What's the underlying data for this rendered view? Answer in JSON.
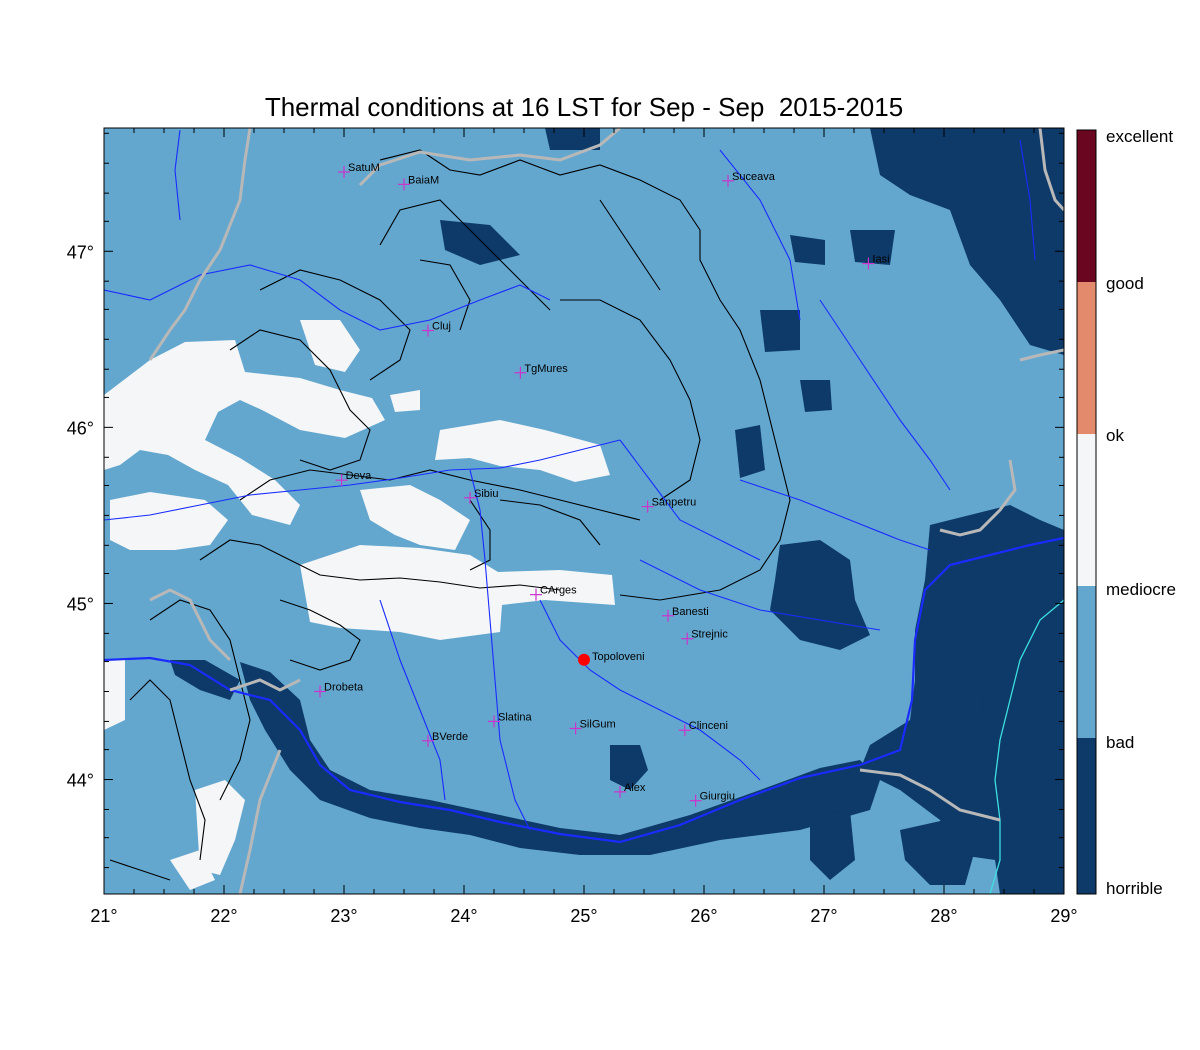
{
  "title": "Thermal conditions at 16 LST for Sep - Sep  2015-2015",
  "colors": {
    "horrible": "#0d3a68",
    "bad": "#63a7cf",
    "mediocre": "#f4f6f8",
    "ok": "#e48a6c",
    "good": "#6b0620",
    "excellent": "#6b0620",
    "border": "#b8b8b8",
    "river": "#1a2bff",
    "coast": "#3de0e0",
    "city": "#cc33cc",
    "highlight": "#ff0000"
  },
  "map": {
    "lon_range": [
      21,
      29
    ],
    "lat_range": [
      43.35,
      47.7
    ],
    "lon_ticks": [
      {
        "value": 21,
        "label": "21°"
      },
      {
        "value": 22,
        "label": "22°"
      },
      {
        "value": 23,
        "label": "23°"
      },
      {
        "value": 24,
        "label": "24°"
      },
      {
        "value": 25,
        "label": "25°"
      },
      {
        "value": 26,
        "label": "26°"
      },
      {
        "value": 27,
        "label": "27°"
      },
      {
        "value": 28,
        "label": "28°"
      },
      {
        "value": 29,
        "label": "29°"
      }
    ],
    "lat_ticks": [
      {
        "value": 44,
        "label": "44°"
      },
      {
        "value": 45,
        "label": "45°"
      },
      {
        "value": 46,
        "label": "46°"
      },
      {
        "value": 47,
        "label": "47°"
      }
    ],
    "minor_lat_ticks": [
      43.5,
      43.67,
      43.83,
      44.17,
      44.33,
      44.5,
      44.67,
      44.83,
      45.17,
      45.33,
      45.5,
      45.67,
      45.83,
      46.17,
      46.33,
      46.5,
      46.67,
      46.83,
      47.17,
      47.33,
      47.5,
      47.67
    ],
    "minor_lon_ticks": [
      21.25,
      21.5,
      21.75,
      22.25,
      22.5,
      22.75,
      23.25,
      23.5,
      23.75,
      24.25,
      24.5,
      24.75,
      25.25,
      25.5,
      25.75,
      26.25,
      26.5,
      26.75,
      27.25,
      27.5,
      27.75,
      28.25,
      28.5,
      28.75
    ]
  },
  "legend": {
    "labels": [
      "excellent",
      "good",
      "ok",
      "mediocre",
      "bad",
      "horrible"
    ]
  },
  "cities": [
    {
      "name": "SatuM",
      "lon": 23.0,
      "lat": 47.45
    },
    {
      "name": "BaiaM",
      "lon": 23.5,
      "lat": 47.38
    },
    {
      "name": "Suceava",
      "lon": 26.2,
      "lat": 47.4
    },
    {
      "name": "Iasi",
      "lon": 27.37,
      "lat": 46.93
    },
    {
      "name": "Cluj",
      "lon": 23.7,
      "lat": 46.55
    },
    {
      "name": "TgMures",
      "lon": 24.47,
      "lat": 46.31
    },
    {
      "name": "Deva",
      "lon": 22.98,
      "lat": 45.7
    },
    {
      "name": "Sibiu",
      "lon": 24.05,
      "lat": 45.6
    },
    {
      "name": "Sanpetru",
      "lon": 25.53,
      "lat": 45.55
    },
    {
      "name": "CArges",
      "lon": 24.6,
      "lat": 45.05
    },
    {
      "name": "Banesti",
      "lon": 25.7,
      "lat": 44.93
    },
    {
      "name": "Strejnic",
      "lon": 25.86,
      "lat": 44.8
    },
    {
      "name": "Drobeta",
      "lon": 22.8,
      "lat": 44.5
    },
    {
      "name": "Slatina",
      "lon": 24.25,
      "lat": 44.33
    },
    {
      "name": "SilGum",
      "lon": 24.93,
      "lat": 44.29
    },
    {
      "name": "Clinceni",
      "lon": 25.84,
      "lat": 44.28
    },
    {
      "name": "BVerde",
      "lon": 23.7,
      "lat": 44.22
    },
    {
      "name": "Alex",
      "lon": 25.3,
      "lat": 43.93
    },
    {
      "name": "Giurgiu",
      "lon": 25.93,
      "lat": 43.88
    }
  ],
  "highlight_city": {
    "name": "Topoloveni",
    "lon": 25.0,
    "lat": 44.68
  }
}
